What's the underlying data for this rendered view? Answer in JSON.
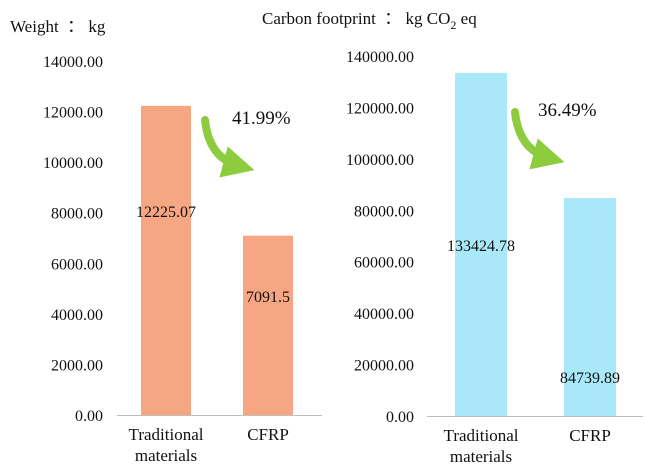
{
  "chart_data": [
    {
      "type": "bar",
      "title_prefix": "Weight  ： kg",
      "title_subscript": "",
      "title_suffix": "",
      "categories": [
        "Traditional materials",
        "CFRP"
      ],
      "category_lines": [
        [
          "Traditional",
          "materials"
        ],
        [
          "CFRP"
        ]
      ],
      "values": [
        12225.07,
        7091.5
      ],
      "value_labels": [
        "12225.07",
        "7091.5"
      ],
      "ylim": [
        0,
        14000
      ],
      "yticks": [
        "0.00",
        "2000.00",
        "4000.00",
        "6000.00",
        "8000.00",
        "10000.00",
        "12000.00",
        "14000.00"
      ],
      "reduction_label": "41.99%",
      "bar_color": "#F7A683",
      "arrow_color": "#8DCB3F",
      "grid": false,
      "legend": false
    },
    {
      "type": "bar",
      "title_prefix": "Carbon footprint  ： kg CO",
      "title_subscript": "2",
      "title_suffix": " eq",
      "categories": [
        "Traditional materials",
        "CFRP"
      ],
      "category_lines": [
        [
          "Traditional",
          "materials"
        ],
        [
          "CFRP"
        ]
      ],
      "values": [
        133424.78,
        84739.89
      ],
      "value_labels": [
        "133424.78",
        "84739.89"
      ],
      "ylim": [
        0,
        140000
      ],
      "yticks": [
        "0.00",
        "20000.00",
        "40000.00",
        "60000.00",
        "80000.00",
        "100000.00",
        "120000.00",
        "140000.00"
      ],
      "reduction_label": "36.49%",
      "bar_color": "#A8E8F8",
      "arrow_color": "#8DCB3F",
      "grid": false,
      "legend": false
    }
  ]
}
